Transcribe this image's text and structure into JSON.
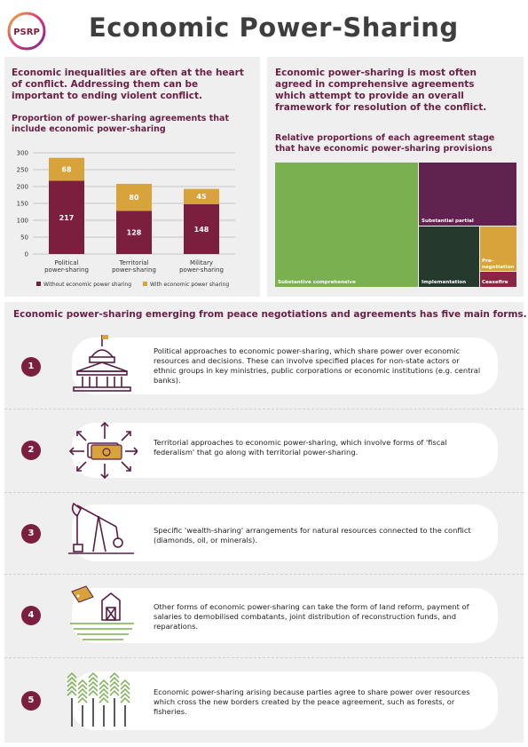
{
  "header": {
    "logo_text": "PSRP",
    "title": "Economic Power-Sharing"
  },
  "left_panel": {
    "lead": "Economic inequalities are often at the heart of conflict. Addressing them can be important to ending violent conflict.",
    "chart_title": "Proportion of power-sharing agreements that include economic power-sharing"
  },
  "right_panel": {
    "lead": "Economic power-sharing is most often agreed in comprehensive agreements which attempt to provide an overall framework for resolution of the conflict.",
    "chart_title": "Relative proportions of each agreement stage that have economic power-sharing provisions"
  },
  "chart_data": [
    {
      "type": "bar",
      "stacked": true,
      "categories": [
        "Political\npower-sharing",
        "Territorial\npower-sharing",
        "Military\npower-sharing"
      ],
      "series": [
        {
          "name": "Without economic power sharing",
          "values": [
            217,
            128,
            148
          ],
          "color": "#7c1f3f"
        },
        {
          "name": "With economic power sharing",
          "values": [
            68,
            80,
            45
          ],
          "color": "#d9a33b"
        }
      ],
      "ylim": [
        0,
        300
      ],
      "yticks": [
        "0",
        "50",
        "100",
        "150",
        "200",
        "250",
        "300"
      ],
      "grid": true,
      "legend": "bottom"
    },
    {
      "type": "treemap",
      "items": [
        {
          "label": "Substantive comprehensive",
          "color": "#7ab04f"
        },
        {
          "label": "Substantial partial",
          "color": "#60234f"
        },
        {
          "label": "Implementation",
          "color": "#25392d"
        },
        {
          "label": "Pre-negotiation",
          "color": "#d9a33b"
        },
        {
          "label": "Ceasefire",
          "color": "#8a2641"
        }
      ]
    }
  ],
  "forms": {
    "heading": "Economic power-sharing emerging from peace negotiations and agreements has five main forms.",
    "items": [
      {
        "number": "1",
        "icon": "government-building-icon",
        "text": "Political approaches to economic power-sharing, which share power over economic resources and decisions. These can involve specified places for non-state actors or ethnic groups in key ministries, public corporations or economic institutions (e.g. central banks)."
      },
      {
        "number": "2",
        "icon": "banknote-arrows-icon",
        "text": "Territorial approaches to economic power-sharing, which involve forms of 'fiscal federalism' that go along with territorial power-sharing."
      },
      {
        "number": "3",
        "icon": "oil-pump-icon",
        "text": "Specific 'wealth-sharing' arrangements for natural resources connected to the conflict (diamonds, oil, or minerals)."
      },
      {
        "number": "4",
        "icon": "farm-land-tag-icon",
        "text": "Other forms of economic power-sharing can take the form of land reform, payment of salaries to demobilised combatants, joint distribution of reconstruction funds, and reparations."
      },
      {
        "number": "5",
        "icon": "forest-trees-icon",
        "text": "Economic power-sharing arising because parties agree to share power over resources which cross the new borders created by the peace agreement, such as forests, or fisheries."
      }
    ]
  }
}
